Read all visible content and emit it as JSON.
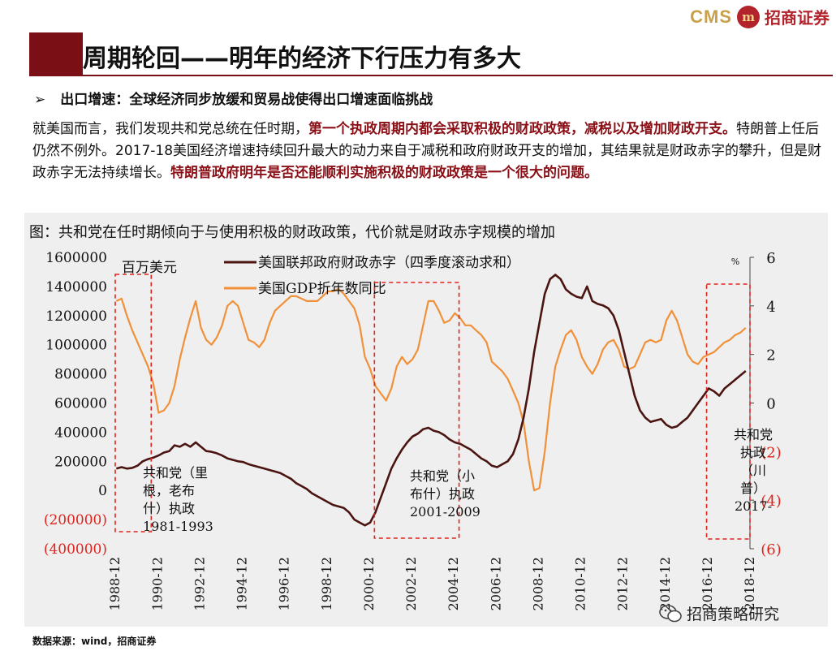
{
  "brand": {
    "cms": "CMS",
    "logo_glyph": "m",
    "company": "招商证券"
  },
  "header": {
    "title": "周期轮回——明年的经济下行压力有多大"
  },
  "bullet": {
    "arrow": "➢",
    "text": "出口增速：全球经济同步放缓和贸易战使得出口增速面临挑战"
  },
  "paragraph": {
    "p1": "就美国而言，我们发现共和党总统在任时期，",
    "p2_red": "第一个执政周期内都会采取积极的财政政策，减税以及增加财政开支。",
    "p3": "特朗普上任后仍然不例外。2017-18美国经济增速持续回升最大的动力来自于减税和政府财政开支的增加，其结果就是财政赤字的攀升，但是财政赤字无法持续增长。",
    "p4_red": "特朗普政府明年是否还能顺利实施积极的财政政策是一个很大的问题。"
  },
  "chart_caption": "图：共和党在任时期倾向于与使用积极的财政政策，代价就是财政赤字规模的增加",
  "source": "数据来源：wind，招商证券",
  "watermark": "招商策略研究",
  "colors": {
    "deficit": "#4a1410",
    "gdp": "#f0913a",
    "accent_red": "#e0231c",
    "title_red": "#7a1015"
  },
  "chart_data": {
    "type": "line",
    "left_unit_label": "百万美元",
    "right_unit_label": "%",
    "left_ylim": [
      -400000,
      1600000
    ],
    "right_ylim": [
      -6,
      6
    ],
    "left_ticks": [
      "1600000",
      "1400000",
      "1200000",
      "1000000",
      "800000",
      "600000",
      "400000",
      "200000",
      "0",
      "(200000)",
      "(400000)"
    ],
    "right_ticks": [
      "6",
      "4",
      "2",
      "0",
      "(2)",
      "(4)",
      "(6)"
    ],
    "x_ticks": [
      "1988-12",
      "1990-12",
      "1992-12",
      "1994-12",
      "1996-12",
      "1998-12",
      "2000-12",
      "2002-12",
      "2004-12",
      "2006-12",
      "2008-12",
      "2010-12",
      "2012-12",
      "2014-12",
      "2016-12",
      "2018-12"
    ],
    "xlim": [
      1988.95,
      2018.95
    ],
    "series": [
      {
        "name": "美国联邦政府财政赤字（四季度滚动求和）",
        "axis": "left",
        "x": [
          1989.0,
          1989.25,
          1989.5,
          1989.75,
          1990.0,
          1990.25,
          1990.5,
          1990.75,
          1991.0,
          1991.25,
          1991.5,
          1991.75,
          1992.0,
          1992.25,
          1992.5,
          1992.75,
          1993.0,
          1993.25,
          1993.5,
          1993.75,
          1994.0,
          1994.25,
          1994.5,
          1994.75,
          1995.0,
          1995.25,
          1995.5,
          1995.75,
          1996.0,
          1996.25,
          1996.5,
          1996.75,
          1997.0,
          1997.25,
          1997.5,
          1997.75,
          1998.0,
          1998.25,
          1998.5,
          1998.75,
          1999.0,
          1999.25,
          1999.5,
          1999.75,
          2000.0,
          2000.25,
          2000.5,
          2000.75,
          2001.0,
          2001.25,
          2001.5,
          2001.75,
          2002.0,
          2002.25,
          2002.5,
          2002.75,
          2003.0,
          2003.25,
          2003.5,
          2003.75,
          2004.0,
          2004.25,
          2004.5,
          2004.75,
          2005.0,
          2005.25,
          2005.5,
          2005.75,
          2006.0,
          2006.25,
          2006.5,
          2006.75,
          2007.0,
          2007.25,
          2007.5,
          2007.75,
          2008.0,
          2008.25,
          2008.5,
          2008.75,
          2009.0,
          2009.25,
          2009.5,
          2009.75,
          2010.0,
          2010.25,
          2010.5,
          2010.75,
          2011.0,
          2011.25,
          2011.5,
          2011.75,
          2012.0,
          2012.25,
          2012.5,
          2012.75,
          2013.0,
          2013.25,
          2013.5,
          2013.75,
          2014.0,
          2014.25,
          2014.5,
          2014.75,
          2015.0,
          2015.25,
          2015.5,
          2015.75,
          2016.0,
          2016.25,
          2016.5,
          2016.75,
          2017.0,
          2017.25,
          2017.5,
          2017.75,
          2018.0,
          2018.25,
          2018.5,
          2018.75
        ],
        "values": [
          150000,
          160000,
          150000,
          155000,
          170000,
          200000,
          215000,
          225000,
          240000,
          260000,
          270000,
          310000,
          300000,
          320000,
          300000,
          330000,
          300000,
          270000,
          265000,
          255000,
          240000,
          220000,
          210000,
          200000,
          195000,
          180000,
          170000,
          160000,
          150000,
          140000,
          130000,
          120000,
          100000,
          80000,
          50000,
          30000,
          10000,
          -20000,
          -40000,
          -60000,
          -80000,
          -100000,
          -110000,
          -120000,
          -150000,
          -200000,
          -220000,
          -240000,
          -220000,
          -150000,
          -50000,
          50000,
          150000,
          220000,
          280000,
          330000,
          370000,
          390000,
          420000,
          430000,
          410000,
          400000,
          380000,
          350000,
          330000,
          320000,
          300000,
          280000,
          250000,
          220000,
          200000,
          170000,
          160000,
          180000,
          200000,
          250000,
          350000,
          500000,
          700000,
          950000,
          1150000,
          1350000,
          1450000,
          1480000,
          1450000,
          1380000,
          1350000,
          1330000,
          1320000,
          1400000,
          1300000,
          1280000,
          1270000,
          1250000,
          1200000,
          1100000,
          950000,
          800000,
          650000,
          550000,
          500000,
          470000,
          480000,
          490000,
          450000,
          430000,
          440000,
          470000,
          500000,
          550000,
          600000,
          650000,
          700000,
          680000,
          650000,
          700000,
          730000,
          760000,
          790000,
          820000
        ]
      },
      {
        "name": "美国GDP折年数同比",
        "axis": "right",
        "x": [
          1989.0,
          1989.25,
          1989.5,
          1989.75,
          1990.0,
          1990.25,
          1990.5,
          1990.75,
          1991.0,
          1991.25,
          1991.5,
          1991.75,
          1992.0,
          1992.25,
          1992.5,
          1992.75,
          1993.0,
          1993.25,
          1993.5,
          1993.75,
          1994.0,
          1994.25,
          1994.5,
          1994.75,
          1995.0,
          1995.25,
          1995.5,
          1995.75,
          1996.0,
          1996.25,
          1996.5,
          1996.75,
          1997.0,
          1997.25,
          1997.5,
          1997.75,
          1998.0,
          1998.25,
          1998.5,
          1998.75,
          1999.0,
          1999.25,
          1999.5,
          1999.75,
          2000.0,
          2000.25,
          2000.5,
          2000.75,
          2001.0,
          2001.25,
          2001.5,
          2001.75,
          2002.0,
          2002.25,
          2002.5,
          2002.75,
          2003.0,
          2003.25,
          2003.5,
          2003.75,
          2004.0,
          2004.25,
          2004.5,
          2004.75,
          2005.0,
          2005.25,
          2005.5,
          2005.75,
          2006.0,
          2006.25,
          2006.5,
          2006.75,
          2007.0,
          2007.25,
          2007.5,
          2007.75,
          2008.0,
          2008.25,
          2008.5,
          2008.75,
          2009.0,
          2009.25,
          2009.5,
          2009.75,
          2010.0,
          2010.25,
          2010.5,
          2010.75,
          2011.0,
          2011.25,
          2011.5,
          2011.75,
          2012.0,
          2012.25,
          2012.5,
          2012.75,
          2013.0,
          2013.25,
          2013.5,
          2013.75,
          2014.0,
          2014.25,
          2014.5,
          2014.75,
          2015.0,
          2015.25,
          2015.5,
          2015.75,
          2016.0,
          2016.25,
          2016.5,
          2016.75,
          2017.0,
          2017.25,
          2017.5,
          2017.75,
          2018.0,
          2018.25,
          2018.5,
          2018.75
        ],
        "values": [
          4.2,
          4.3,
          3.6,
          3.0,
          2.5,
          2.0,
          1.5,
          0.8,
          -0.4,
          -0.3,
          0.0,
          0.7,
          1.8,
          2.7,
          3.5,
          4.2,
          3.1,
          2.6,
          2.4,
          2.7,
          3.2,
          4.0,
          4.2,
          4.0,
          3.3,
          2.6,
          2.5,
          2.3,
          2.6,
          3.3,
          3.8,
          4.0,
          4.2,
          4.4,
          4.4,
          4.3,
          4.2,
          4.2,
          4.2,
          4.4,
          4.6,
          4.6,
          4.7,
          4.5,
          4.2,
          3.9,
          3.2,
          1.9,
          1.4,
          0.7,
          0.4,
          0.1,
          0.6,
          1.5,
          1.9,
          1.6,
          1.8,
          2.2,
          3.2,
          4.2,
          4.2,
          3.8,
          3.3,
          3.4,
          3.7,
          3.5,
          3.2,
          3.2,
          3.0,
          2.8,
          2.5,
          1.7,
          1.5,
          1.3,
          1.0,
          0.5,
          0.0,
          -0.8,
          -2.4,
          -3.6,
          -3.5,
          -2.0,
          0.0,
          1.5,
          2.2,
          2.8,
          3.0,
          2.6,
          1.9,
          1.5,
          1.2,
          1.6,
          2.2,
          2.5,
          2.6,
          2.2,
          1.5,
          1.4,
          1.5,
          2.0,
          2.5,
          2.6,
          2.5,
          2.6,
          3.4,
          3.8,
          3.4,
          2.7,
          2.0,
          1.7,
          1.6,
          1.9,
          2.0,
          2.1,
          2.3,
          2.5,
          2.6,
          2.8,
          2.9,
          3.1
        ]
      }
    ],
    "annotations": [
      {
        "label": "共和党（里根，老布什）执政1981-1993",
        "lines": [
          "共和党（里",
          "根，老布",
          "什）执政",
          "1981-1993"
        ],
        "x_range": [
          1988.95,
          1990.65
        ]
      },
      {
        "label": "共和党（小布什）执政2001-2009",
        "lines": [
          "共和党（小",
          "布什）执政",
          "2001-2009"
        ],
        "x_range": [
          2001.2,
          2005.2
        ]
      },
      {
        "label": "共和党执政（川普）2017-",
        "lines": [
          "共和党",
          "执政",
          "（川",
          "普）",
          "2017-"
        ],
        "x_range": [
          2016.9,
          2018.95
        ]
      }
    ]
  }
}
